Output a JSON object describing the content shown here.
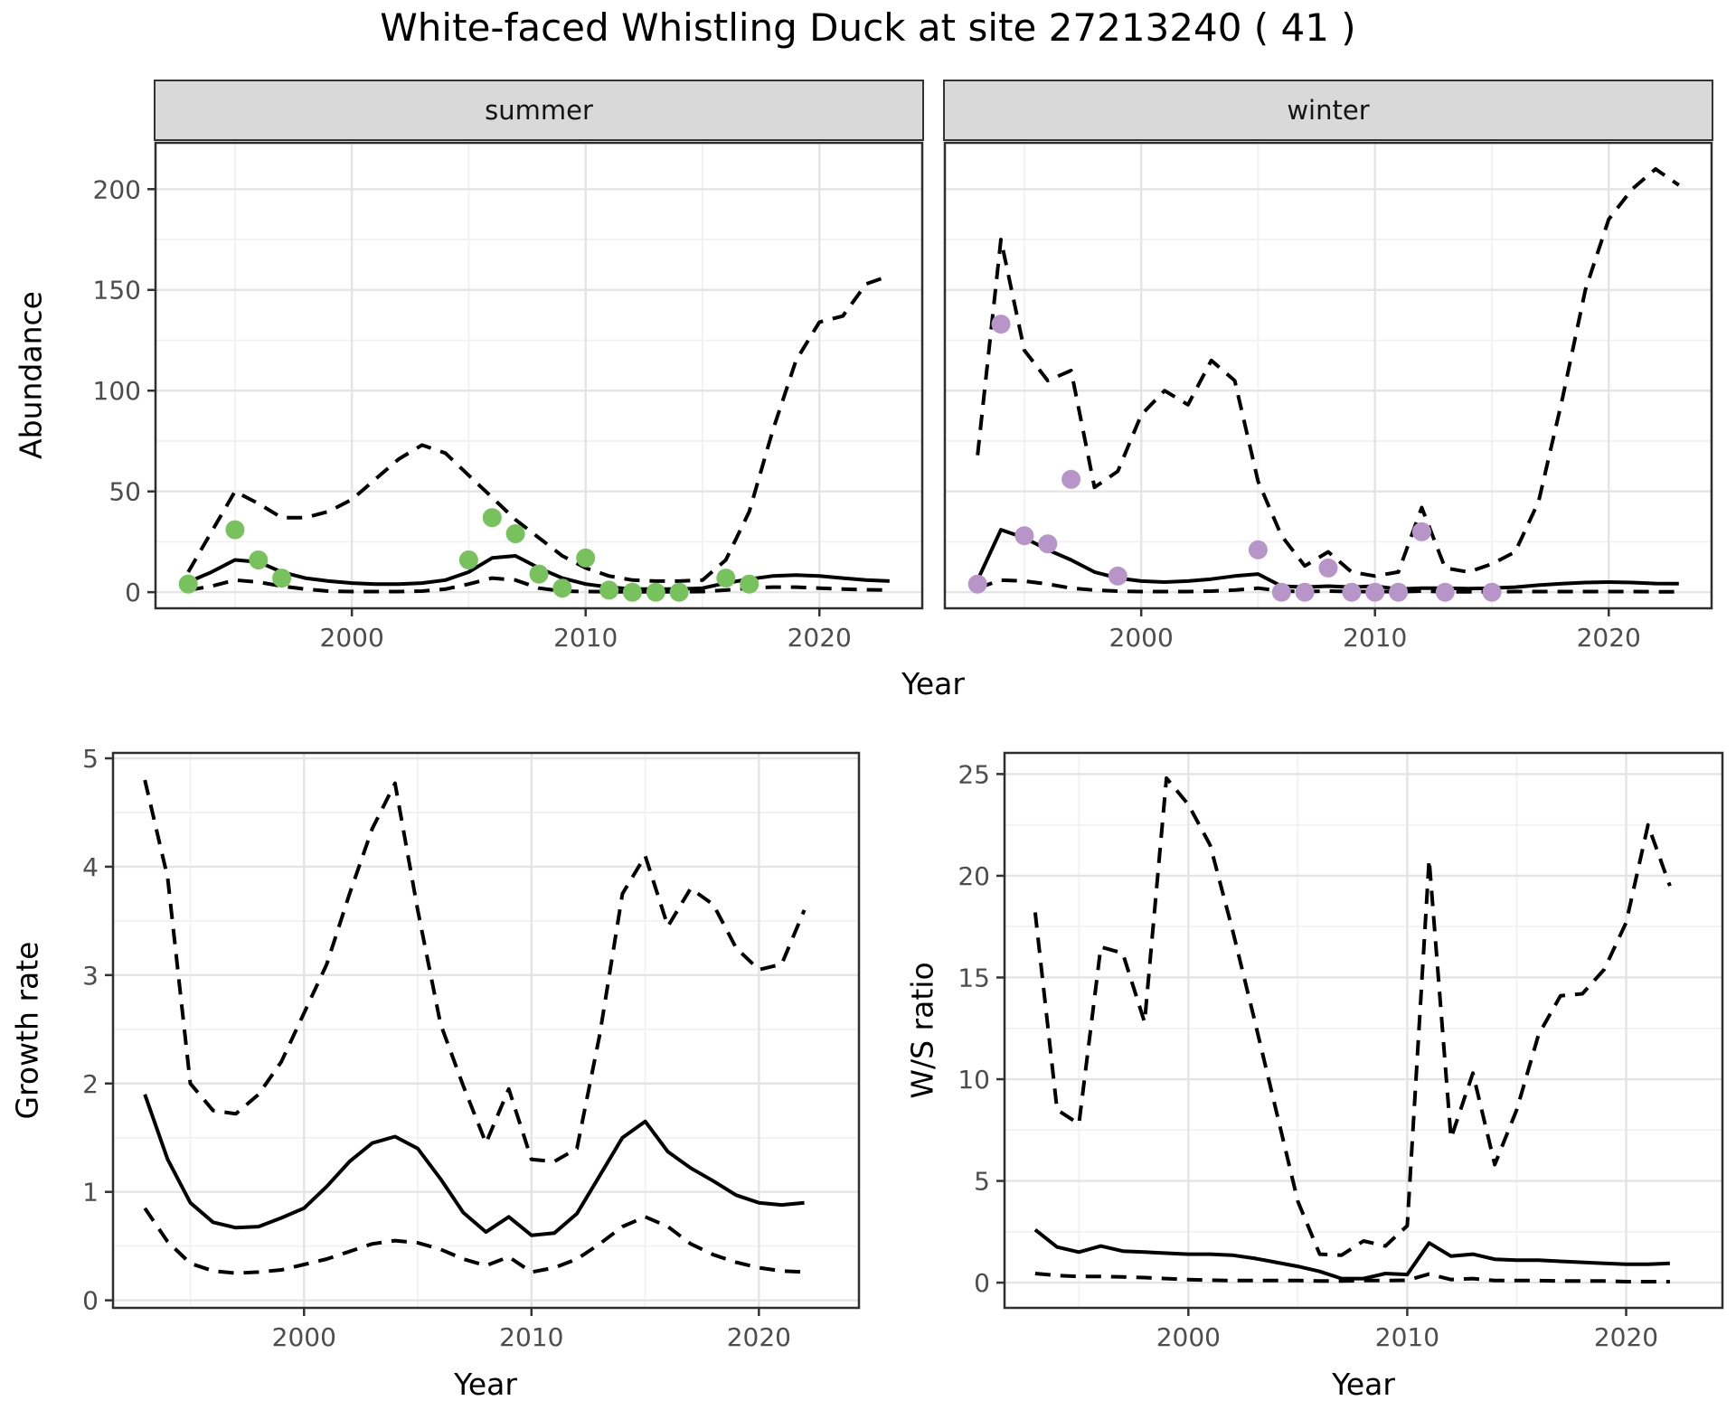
{
  "labels": {
    "title": "White-faced Whistling Duck at site 27213240 ( 41 )",
    "year_axis": "Year",
    "abundance_axis": "Abundance",
    "growth_axis": "Growth rate",
    "ws_axis": "W/S ratio"
  },
  "facets": {
    "summer": "summer",
    "winter": "winter"
  },
  "colors": {
    "summer_points": "#78C25D",
    "winter_points": "#B895C9",
    "line": "#000000",
    "grid_major": "#e4e4e4",
    "grid_minor": "#f1f1f1",
    "strip_bg": "#d9d9d9",
    "panel_border": "#2e2e2e",
    "tick_text": "#4d4d4d"
  },
  "chart_data": [
    {
      "type": "line",
      "panel_id": "abundance-summer",
      "facet": "summer",
      "xlabel": "Year",
      "ylabel": "Abundance",
      "xlim": [
        1991.6,
        2024.4
      ],
      "ylim": [
        -8,
        223
      ],
      "x_ticks": [
        2000,
        2010,
        2020
      ],
      "x_minor_ticks": [
        1995,
        2005,
        2015
      ],
      "y_ticks": [
        0,
        50,
        100,
        150,
        200
      ],
      "y_minor_ticks": [
        25,
        75,
        125,
        175
      ],
      "x": [
        1993,
        1994,
        1995,
        1996,
        1997,
        1998,
        1999,
        2000,
        2001,
        2002,
        2003,
        2004,
        2005,
        2006,
        2007,
        2008,
        2009,
        2010,
        2011,
        2012,
        2013,
        2014,
        2015,
        2016,
        2017,
        2018,
        2019,
        2020,
        2021,
        2022,
        2023
      ],
      "series": [
        {
          "name": "median_fit",
          "style": "solid",
          "values": [
            5,
            10,
            16,
            15,
            10,
            7,
            5.5,
            4.5,
            4,
            4,
            4.5,
            6,
            10,
            17,
            18,
            12,
            7,
            4,
            2.5,
            1.5,
            1.5,
            1.5,
            2,
            4.5,
            6.5,
            8,
            8.5,
            8,
            7,
            6,
            5.5
          ]
        },
        {
          "name": "upper_ci",
          "style": "dashed",
          "values": [
            10,
            30,
            50,
            44,
            37,
            37,
            40,
            46,
            56,
            66,
            73,
            69,
            58,
            47,
            36,
            27,
            18,
            12,
            8,
            6,
            5.5,
            5.5,
            6,
            16,
            40,
            80,
            115,
            134,
            137,
            153,
            157
          ]
        },
        {
          "name": "lower_ci",
          "style": "dashed",
          "values": [
            1,
            3,
            6,
            5,
            3,
            1.5,
            0.5,
            0.3,
            0.3,
            0.3,
            0.5,
            1.5,
            4,
            7,
            6,
            2,
            0.5,
            0.3,
            0.2,
            0.2,
            0.2,
            0.2,
            0.3,
            1,
            2,
            2.5,
            2.5,
            2,
            1.5,
            1.2,
            1
          ]
        }
      ],
      "points": {
        "name": "observed_counts",
        "color_key": "summer_points",
        "x": [
          1993,
          1995,
          1996,
          1997,
          2005,
          2006,
          2007,
          2008,
          2009,
          2010,
          2011,
          2012,
          2013,
          2014,
          2016,
          2017
        ],
        "values": [
          4,
          31,
          16,
          7,
          16,
          37,
          29,
          9,
          2,
          17,
          1,
          0,
          0,
          0,
          7,
          4
        ]
      }
    },
    {
      "type": "line",
      "panel_id": "abundance-winter",
      "facet": "winter",
      "xlabel": "Year",
      "ylabel": "Abundance",
      "xlim": [
        1991.6,
        2024.4
      ],
      "ylim": [
        -8,
        223
      ],
      "x_ticks": [
        2000,
        2010,
        2020
      ],
      "x_minor_ticks": [
        1995,
        2005,
        2015
      ],
      "y_ticks": [
        0,
        50,
        100,
        150,
        200
      ],
      "y_minor_ticks": [
        25,
        75,
        125,
        175
      ],
      "x": [
        1993,
        1994,
        1995,
        1996,
        1997,
        1998,
        1999,
        2000,
        2001,
        2002,
        2003,
        2004,
        2005,
        2006,
        2007,
        2008,
        2009,
        2010,
        2011,
        2012,
        2013,
        2014,
        2015,
        2016,
        2017,
        2018,
        2019,
        2020,
        2021,
        2022,
        2023
      ],
      "series": [
        {
          "name": "median_fit",
          "style": "solid",
          "values": [
            6,
            31,
            27,
            21,
            16,
            10,
            7,
            5.5,
            5,
            5.5,
            6.5,
            8,
            9,
            3,
            2.5,
            3,
            2.5,
            3,
            1.5,
            2,
            2,
            1.8,
            2,
            2.5,
            3.5,
            4.2,
            4.8,
            5,
            4.8,
            4.3,
            4.2
          ]
        },
        {
          "name": "upper_ci",
          "style": "dashed",
          "values": [
            68,
            175,
            120,
            105,
            110,
            52,
            60,
            88,
            100,
            93,
            115,
            105,
            55,
            28,
            13,
            20,
            10,
            8,
            10,
            42,
            12,
            10,
            14,
            20,
            45,
            95,
            150,
            185,
            200,
            210,
            202
          ]
        },
        {
          "name": "lower_ci",
          "style": "dashed",
          "values": [
            2,
            6,
            5.5,
            4,
            2,
            1,
            0.5,
            0.3,
            0.3,
            0.3,
            0.5,
            1,
            2,
            0.5,
            0.3,
            0.5,
            0.3,
            0.3,
            0.2,
            0.5,
            0.2,
            0.2,
            0.2,
            0.3,
            0.3,
            0.3,
            0.3,
            0.3,
            0.3,
            0.2,
            0.2
          ]
        }
      ],
      "points": {
        "name": "observed_counts",
        "color_key": "winter_points",
        "x": [
          1993,
          1994,
          1995,
          1996,
          1997,
          1999,
          2005,
          2006,
          2007,
          2008,
          2009,
          2010,
          2011,
          2012,
          2013,
          2015
        ],
        "values": [
          4,
          133,
          28,
          24,
          56,
          8,
          21,
          0,
          0,
          12,
          0,
          0,
          0,
          30,
          0,
          0
        ]
      }
    },
    {
      "type": "line",
      "panel_id": "growth-rate",
      "facet": null,
      "xlabel": "Year",
      "ylabel": "Growth rate",
      "xlim": [
        1991.6,
        2024.4
      ],
      "ylim": [
        -0.07,
        5.05
      ],
      "x_ticks": [
        2000,
        2010,
        2020
      ],
      "x_minor_ticks": [
        1995,
        2005,
        2015
      ],
      "y_ticks": [
        0,
        1,
        2,
        3,
        4,
        5
      ],
      "y_minor_ticks": [
        0.5,
        1.5,
        2.5,
        3.5,
        4.5
      ],
      "x": [
        1993,
        1994,
        1995,
        1996,
        1997,
        1998,
        1999,
        2000,
        2001,
        2002,
        2003,
        2004,
        2005,
        2006,
        2007,
        2008,
        2009,
        2010,
        2011,
        2012,
        2013,
        2014,
        2015,
        2016,
        2017,
        2018,
        2019,
        2020,
        2021,
        2022
      ],
      "series": [
        {
          "name": "median_fit",
          "style": "solid",
          "values": [
            1.9,
            1.3,
            0.9,
            0.72,
            0.67,
            0.68,
            0.76,
            0.85,
            1.05,
            1.28,
            1.45,
            1.51,
            1.4,
            1.12,
            0.81,
            0.63,
            0.77,
            0.6,
            0.62,
            0.8,
            1.15,
            1.5,
            1.65,
            1.37,
            1.22,
            1.1,
            0.97,
            0.9,
            0.88,
            0.9
          ]
        },
        {
          "name": "upper_ci",
          "style": "dashed",
          "values": [
            4.8,
            3.9,
            2.0,
            1.75,
            1.72,
            1.9,
            2.2,
            2.65,
            3.1,
            3.75,
            4.35,
            4.77,
            3.6,
            2.55,
            1.98,
            1.45,
            1.95,
            1.3,
            1.28,
            1.4,
            2.45,
            3.75,
            4.1,
            3.45,
            3.8,
            3.65,
            3.25,
            3.05,
            3.1,
            3.6
          ]
        },
        {
          "name": "lower_ci",
          "style": "dashed",
          "values": [
            0.85,
            0.54,
            0.34,
            0.27,
            0.25,
            0.26,
            0.28,
            0.33,
            0.38,
            0.45,
            0.52,
            0.55,
            0.53,
            0.47,
            0.38,
            0.32,
            0.4,
            0.26,
            0.3,
            0.38,
            0.52,
            0.68,
            0.77,
            0.68,
            0.52,
            0.42,
            0.35,
            0.3,
            0.27,
            0.26
          ]
        }
      ],
      "points": null
    },
    {
      "type": "line",
      "panel_id": "ws-ratio",
      "facet": null,
      "xlabel": "Year",
      "ylabel": "W/S ratio",
      "xlim": [
        1991.6,
        2024.4
      ],
      "ylim": [
        -1.24,
        26.04
      ],
      "x_ticks": [
        2000,
        2010,
        2020
      ],
      "x_minor_ticks": [
        1995,
        2005,
        2015
      ],
      "y_ticks": [
        0,
        5,
        10,
        15,
        20,
        25
      ],
      "y_minor_ticks": [
        2.5,
        7.5,
        12.5,
        17.5,
        22.5
      ],
      "x": [
        1993,
        1994,
        1995,
        1996,
        1997,
        1998,
        1999,
        2000,
        2001,
        2002,
        2003,
        2004,
        2005,
        2006,
        2007,
        2008,
        2009,
        2010,
        2011,
        2012,
        2013,
        2014,
        2015,
        2016,
        2017,
        2018,
        2019,
        2020,
        2021,
        2022
      ],
      "series": [
        {
          "name": "median_fit",
          "style": "solid",
          "values": [
            2.6,
            1.75,
            1.5,
            1.8,
            1.55,
            1.5,
            1.45,
            1.4,
            1.4,
            1.35,
            1.2,
            1.0,
            0.8,
            0.55,
            0.2,
            0.2,
            0.45,
            0.4,
            1.95,
            1.3,
            1.4,
            1.15,
            1.1,
            1.1,
            1.05,
            1.0,
            0.95,
            0.9,
            0.9,
            0.95
          ]
        },
        {
          "name": "upper_ci",
          "style": "dashed",
          "values": [
            18.2,
            8.5,
            7.8,
            16.5,
            16.2,
            12.8,
            24.8,
            23.5,
            21.5,
            17.4,
            13,
            8.5,
            4,
            1.4,
            1.35,
            2.05,
            1.8,
            2.8,
            20.8,
            7.1,
            10.3,
            5.8,
            8.5,
            12.2,
            14.1,
            14.2,
            15.4,
            17.7,
            22.5,
            19.5
          ]
        },
        {
          "name": "lower_ci",
          "style": "dashed",
          "values": [
            0.45,
            0.35,
            0.3,
            0.3,
            0.28,
            0.25,
            0.2,
            0.15,
            0.12,
            0.1,
            0.1,
            0.1,
            0.1,
            0.08,
            0.08,
            0.1,
            0.1,
            0.12,
            0.42,
            0.15,
            0.2,
            0.1,
            0.1,
            0.1,
            0.08,
            0.08,
            0.08,
            0.05,
            0.05,
            0.05
          ]
        }
      ],
      "points": null
    }
  ]
}
